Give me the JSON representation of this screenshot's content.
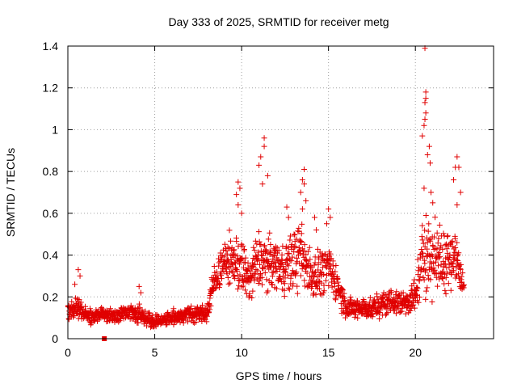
{
  "chart_data": {
    "type": "scatter",
    "title": "Day 333 of 2025, SRMTID for receiver metg",
    "xlabel": "GPS time / hours",
    "ylabel": "SRMTID / TECUs",
    "xlim": [
      0,
      24.5
    ],
    "ylim": [
      0,
      1.4
    ],
    "x_ticks": [
      0,
      5,
      10,
      15,
      20
    ],
    "x_tick_labels": [
      "0",
      "5",
      "10",
      "15",
      "20"
    ],
    "y_ticks": [
      0,
      0.2,
      0.4,
      0.6,
      0.8,
      1.0,
      1.2,
      1.4
    ],
    "y_tick_labels": [
      "0",
      "0.2",
      "0.4",
      "0.6",
      "0.8",
      "1",
      "1.2",
      "1.4"
    ],
    "grid": true,
    "marker": "plus",
    "color": "#e00000",
    "series": [
      {
        "name": "SRMTID",
        "profile": {
          "x": [
            0.0,
            0.5,
            1.0,
            1.5,
            2.0,
            2.5,
            3.0,
            3.5,
            4.0,
            4.5,
            5.0,
            5.5,
            6.0,
            6.5,
            7.0,
            7.5,
            8.0,
            8.5,
            9.0,
            9.5,
            10.0,
            10.5,
            11.0,
            11.5,
            12.0,
            12.5,
            13.0,
            13.5,
            14.0,
            14.5,
            15.0,
            15.5,
            16.0,
            16.5,
            17.0,
            17.5,
            18.0,
            18.5,
            19.0,
            19.5,
            20.0,
            20.5,
            21.0,
            21.5,
            22.0,
            22.5,
            22.8
          ],
          "y": [
            0.13,
            0.15,
            0.11,
            0.1,
            0.12,
            0.11,
            0.12,
            0.13,
            0.12,
            0.1,
            0.08,
            0.09,
            0.1,
            0.11,
            0.12,
            0.12,
            0.12,
            0.3,
            0.36,
            0.38,
            0.34,
            0.28,
            0.38,
            0.36,
            0.36,
            0.34,
            0.38,
            0.4,
            0.3,
            0.32,
            0.34,
            0.26,
            0.15,
            0.14,
            0.15,
            0.14,
            0.16,
            0.18,
            0.17,
            0.18,
            0.2,
            0.42,
            0.4,
            0.36,
            0.42,
            0.34,
            0.24
          ],
          "spread": [
            0.05,
            0.08,
            0.05,
            0.05,
            0.05,
            0.05,
            0.05,
            0.05,
            0.06,
            0.05,
            0.04,
            0.04,
            0.05,
            0.05,
            0.06,
            0.05,
            0.07,
            0.12,
            0.14,
            0.18,
            0.18,
            0.18,
            0.22,
            0.18,
            0.16,
            0.18,
            0.22,
            0.22,
            0.16,
            0.16,
            0.14,
            0.12,
            0.08,
            0.07,
            0.07,
            0.07,
            0.08,
            0.09,
            0.08,
            0.09,
            0.12,
            0.3,
            0.25,
            0.22,
            0.25,
            0.2,
            0.08
          ]
        },
        "extra_points": [
          [
            20.55,
            1.39
          ],
          [
            20.6,
            1.18
          ],
          [
            20.6,
            1.15
          ],
          [
            20.55,
            1.13
          ],
          [
            20.6,
            1.08
          ],
          [
            20.55,
            1.05
          ],
          [
            20.5,
            1.02
          ],
          [
            20.4,
            0.97
          ],
          [
            20.8,
            0.92
          ],
          [
            20.7,
            0.88
          ],
          [
            20.85,
            0.84
          ],
          [
            20.5,
            0.72
          ],
          [
            20.9,
            0.7
          ],
          [
            21.0,
            0.65
          ],
          [
            22.4,
            0.87
          ],
          [
            22.3,
            0.82
          ],
          [
            22.5,
            0.82
          ],
          [
            22.2,
            0.76
          ],
          [
            22.6,
            0.7
          ],
          [
            22.4,
            0.64
          ],
          [
            11.3,
            0.96
          ],
          [
            11.3,
            0.92
          ],
          [
            11.1,
            0.87
          ],
          [
            11.0,
            0.83
          ],
          [
            11.5,
            0.78
          ],
          [
            11.2,
            0.74
          ],
          [
            13.6,
            0.81
          ],
          [
            13.5,
            0.76
          ],
          [
            13.6,
            0.74
          ],
          [
            13.4,
            0.7
          ],
          [
            13.7,
            0.66
          ],
          [
            13.5,
            0.62
          ],
          [
            9.8,
            0.75
          ],
          [
            9.9,
            0.72
          ],
          [
            9.7,
            0.69
          ],
          [
            9.8,
            0.64
          ],
          [
            10.0,
            0.6
          ],
          [
            15.0,
            0.62
          ],
          [
            15.1,
            0.58
          ],
          [
            14.9,
            0.55
          ],
          [
            12.6,
            0.63
          ],
          [
            12.7,
            0.58
          ],
          [
            14.2,
            0.58
          ],
          [
            14.3,
            0.52
          ],
          [
            0.6,
            0.33
          ],
          [
            0.7,
            0.3
          ],
          [
            0.4,
            0.26
          ],
          [
            4.1,
            0.25
          ],
          [
            4.2,
            0.22
          ]
        ],
        "square_markers": [
          [
            2.1,
            0.0
          ]
        ]
      }
    ]
  }
}
